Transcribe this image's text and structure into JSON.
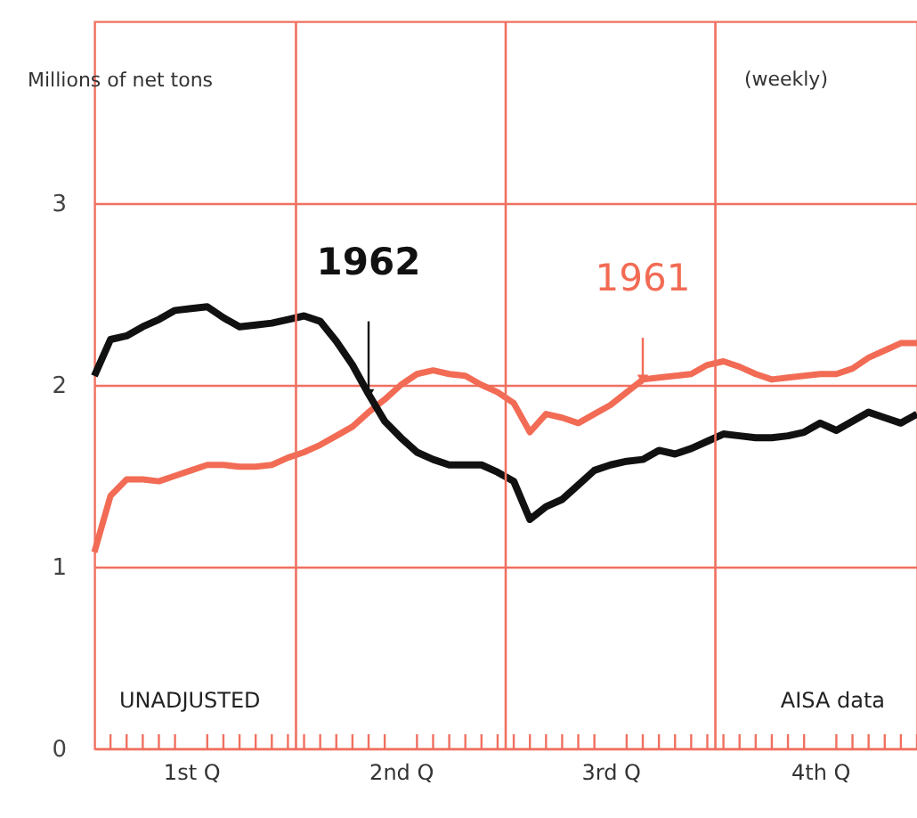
{
  "chart_data": {
    "type": "line",
    "subtitle": "(weekly)",
    "ylabel": "Millions of net tons",
    "categories": [
      null,
      null,
      null,
      null,
      null,
      null,
      "1st Q",
      null,
      null,
      null,
      null,
      null,
      null,
      null,
      null,
      null,
      null,
      null,
      null,
      "2nd Q",
      null,
      null,
      null,
      null,
      null,
      null,
      null,
      null,
      null,
      null,
      null,
      null,
      "3rd Q",
      null,
      null,
      null,
      null,
      null,
      null,
      null,
      null,
      null,
      null,
      null,
      null,
      "4th Q",
      null,
      null,
      null,
      null,
      null,
      null
    ],
    "ylim": [
      0,
      4
    ],
    "yticks": [
      0,
      1,
      2,
      3
    ],
    "grid": true,
    "line_style": "solid",
    "marker": "none",
    "series": [
      {
        "name": "1962",
        "color": "#111111",
        "values": [
          2.05,
          2.25,
          2.27,
          2.32,
          2.36,
          2.41,
          2.42,
          2.43,
          2.37,
          2.32,
          2.33,
          2.34,
          2.36,
          2.38,
          2.35,
          2.24,
          2.11,
          1.95,
          1.8,
          1.71,
          1.63,
          1.59,
          1.56,
          1.56,
          1.56,
          1.52,
          1.47,
          1.26,
          1.33,
          1.37,
          1.45,
          1.53,
          1.56,
          1.58,
          1.59,
          1.64,
          1.62,
          1.65,
          1.69,
          1.73,
          1.72,
          1.71,
          1.71,
          1.72,
          1.74,
          1.79,
          1.75,
          1.8,
          1.85,
          1.82,
          1.79,
          1.84
        ]
      },
      {
        "name": "1961",
        "color": "#f26b55",
        "values": [
          1.08,
          1.39,
          1.48,
          1.48,
          1.47,
          1.5,
          1.53,
          1.56,
          1.56,
          1.55,
          1.55,
          1.56,
          1.6,
          1.63,
          1.67,
          1.72,
          1.77,
          1.85,
          1.92,
          2.0,
          2.06,
          2.08,
          2.06,
          2.05,
          2.0,
          1.96,
          1.9,
          1.74,
          1.84,
          1.82,
          1.79,
          1.84,
          1.89,
          1.96,
          2.03,
          2.04,
          2.05,
          2.06,
          2.11,
          2.13,
          2.1,
          2.06,
          2.03,
          2.04,
          2.05,
          2.06,
          2.06,
          2.09,
          2.15,
          2.19,
          2.23,
          2.23
        ]
      }
    ],
    "annotations": [
      "UNADJUSTED",
      "AISA data"
    ]
  }
}
